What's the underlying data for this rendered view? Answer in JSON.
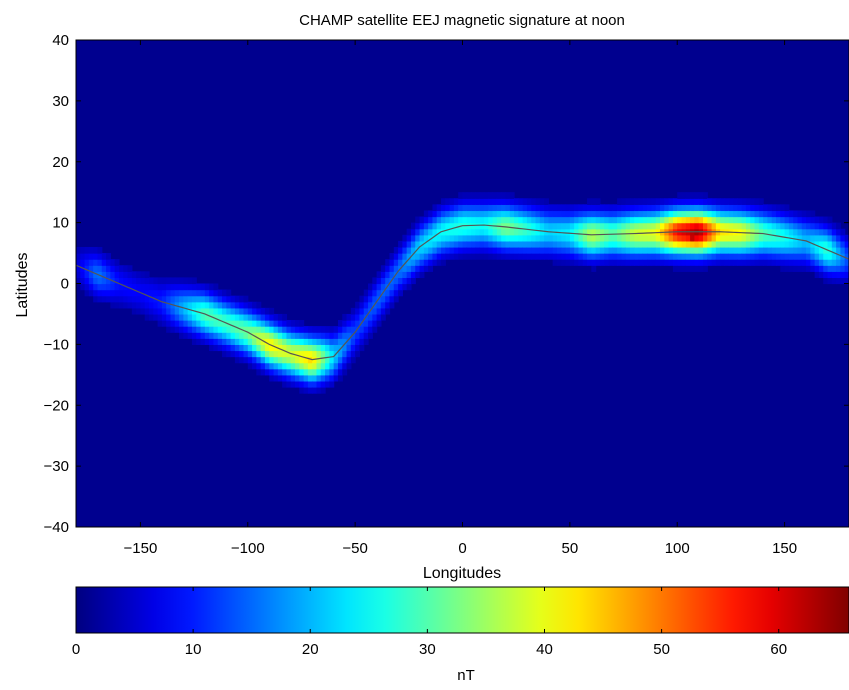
{
  "chart_data": {
    "type": "heatmap",
    "title": "CHAMP satellite EEJ magnetic signature at noon",
    "xlabel": "Longitudes",
    "ylabel": "Latitudes",
    "xlim": [
      -180,
      180
    ],
    "ylim": [
      -40,
      40
    ],
    "x_ticks": [
      -150,
      -100,
      -50,
      0,
      50,
      100,
      150
    ],
    "y_ticks": [
      -40,
      -30,
      -20,
      -10,
      0,
      10,
      20,
      30,
      40
    ],
    "grid": false,
    "background_value": 0,
    "colormap": "jet",
    "colorbar": {
      "label": "nT",
      "range": [
        0,
        66
      ],
      "ticks": [
        0,
        10,
        20,
        30,
        40,
        50,
        60
      ],
      "placement": "bottom"
    },
    "dip_equator_curve": {
      "color": "#555555",
      "points": [
        [
          -180,
          3
        ],
        [
          -160,
          0
        ],
        [
          -140,
          -3
        ],
        [
          -120,
          -5
        ],
        [
          -100,
          -8
        ],
        [
          -90,
          -10
        ],
        [
          -80,
          -11.5
        ],
        [
          -70,
          -12.5
        ],
        [
          -60,
          -12
        ],
        [
          -50,
          -8
        ],
        [
          -40,
          -3
        ],
        [
          -30,
          2
        ],
        [
          -20,
          6
        ],
        [
          -10,
          8.5
        ],
        [
          0,
          9.5
        ],
        [
          10,
          9.6
        ],
        [
          20,
          9.3
        ],
        [
          40,
          8.5
        ],
        [
          60,
          8
        ],
        [
          80,
          8.2
        ],
        [
          100,
          8.5
        ],
        [
          120,
          8.5
        ],
        [
          140,
          8.2
        ],
        [
          160,
          7
        ],
        [
          180,
          4
        ]
      ]
    },
    "signal_profile": [
      [
        -180,
        5
      ],
      [
        -170,
        16
      ],
      [
        -160,
        9
      ],
      [
        -150,
        8
      ],
      [
        -140,
        10
      ],
      [
        -130,
        20
      ],
      [
        -120,
        30
      ],
      [
        -110,
        29
      ],
      [
        -100,
        32
      ],
      [
        -90,
        42
      ],
      [
        -80,
        38
      ],
      [
        -70,
        44
      ],
      [
        -60,
        22
      ],
      [
        -50,
        12
      ],
      [
        -40,
        14
      ],
      [
        -30,
        15
      ],
      [
        -20,
        22
      ],
      [
        -10,
        25
      ],
      [
        0,
        27
      ],
      [
        10,
        25
      ],
      [
        20,
        33
      ],
      [
        30,
        28
      ],
      [
        40,
        22
      ],
      [
        50,
        24
      ],
      [
        60,
        37
      ],
      [
        70,
        30
      ],
      [
        80,
        38
      ],
      [
        90,
        40
      ],
      [
        100,
        58
      ],
      [
        110,
        64
      ],
      [
        120,
        43
      ],
      [
        130,
        41
      ],
      [
        140,
        30
      ],
      [
        150,
        26
      ],
      [
        160,
        20
      ],
      [
        170,
        28
      ],
      [
        180,
        12
      ]
    ],
    "band_half_width_deg": 3.5,
    "peak": {
      "lon": 107,
      "lat": 8,
      "value": 64
    }
  }
}
